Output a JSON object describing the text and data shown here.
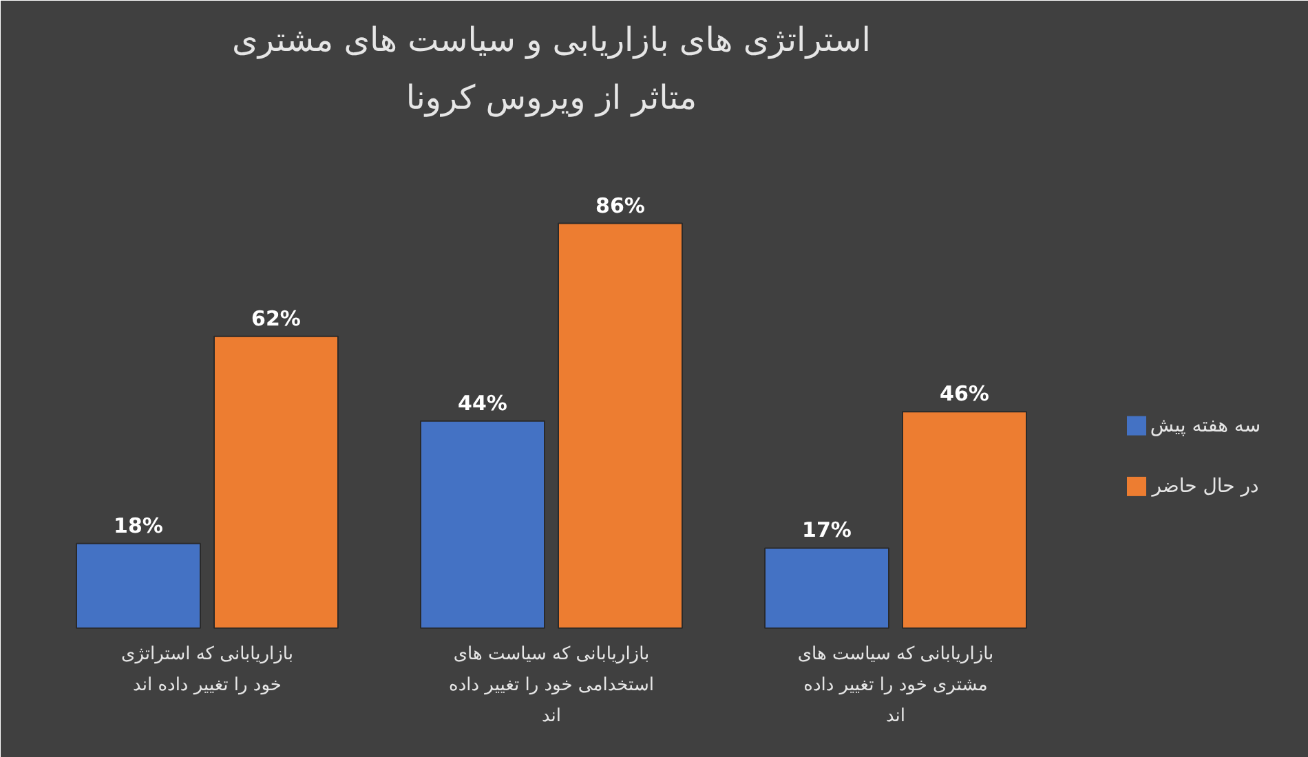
{
  "chart_data": {
    "type": "bar",
    "title": "استراتژی های بازاریابی و سیاست های مشتری متاثر از ویروس کرونا",
    "categories": [
      "بازاریابانی که استراتژی خود را تغییر داده اند",
      "بازاریابانی که سیاست های استخدامی خود را تغییر داده اند",
      "بازاریابانی که سیاست های مشتری خود را تغییر داده اند"
    ],
    "series": [
      {
        "name": "سه هفته پیش",
        "color": "#4472c4",
        "values": [
          18,
          44,
          17
        ],
        "value_labels": [
          "18%",
          "44%",
          "17%"
        ]
      },
      {
        "name": "در حال حاضر",
        "color": "#ed7d31",
        "values": [
          62,
          86,
          46
        ],
        "value_labels": [
          "62%",
          "86%",
          "46%"
        ]
      }
    ],
    "tick_labels": "x",
    "grid": false,
    "legend": "right"
  }
}
